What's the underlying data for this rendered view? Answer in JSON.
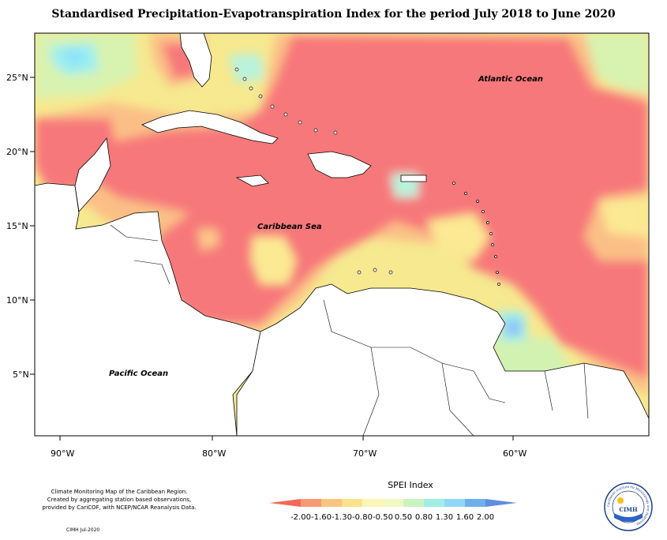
{
  "title": "Standardised Precipitation-Evapotranspiration Index for the period July 2018 to June 2020",
  "map": {
    "lon_labels": [
      "90°W",
      "80°W",
      "70°W",
      "60°W"
    ],
    "lat_labels": [
      "25°N",
      "20°N",
      "15°N",
      "10°N",
      "5°N"
    ],
    "water_labels": {
      "atlantic": "Atlantic Ocean",
      "caribbean": "Caribbean Sea",
      "pacific": "Pacific Ocean"
    }
  },
  "legend": {
    "title": "SPEI Index",
    "values": [
      "-2.00",
      "-1.60",
      "-1.30",
      "-0.80",
      "-0.50",
      "0.50",
      "0.80",
      "1.30",
      "1.60",
      "2.00"
    ],
    "colors": [
      "#f26a57",
      "#f79a73",
      "#fbc47e",
      "#fbe28a",
      "#fcf5b8",
      "#f2f8c2",
      "#c9f3bf",
      "#9eeee6",
      "#8fd8f6",
      "#6fb0ea",
      "#5f8de0"
    ]
  },
  "credits": {
    "line1": "Climate Monitoring Map of the Caribbean Region.",
    "line2": "Created by aggregating station based observations,",
    "line3": "provided by CariCOF, with NCEP/NCAR Reanalysis Data.",
    "date": "CIMH Jul-2020"
  },
  "logo": {
    "text": "CIMH",
    "ring_text": "Caribbean Institute for Meteorology and Hydrology"
  },
  "colors": {
    "dry": "#f7787a",
    "moderate": "#fbc68a",
    "mild": "#fbe993",
    "normal": "#e6f7b8",
    "wet": "#9ff0ee",
    "very_wet": "#8fc4f6"
  }
}
